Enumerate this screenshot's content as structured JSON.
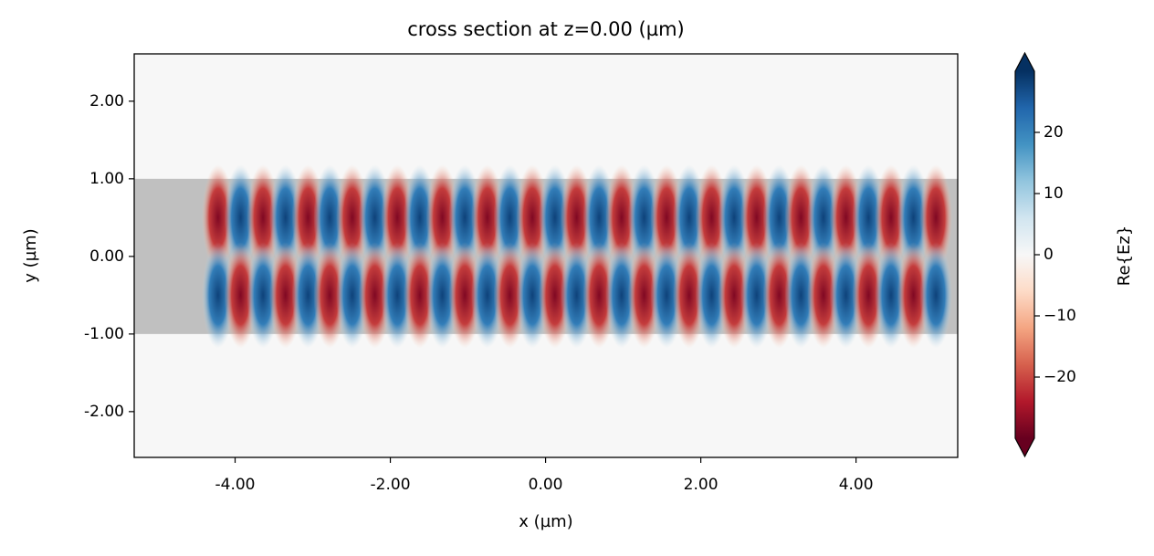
{
  "chart_data": {
    "type": "heatmap",
    "title": "cross section at z=0.00 (µm)",
    "x_label": "x (µm)",
    "y_label": "y (µm)",
    "colorbar_label": "Re{Ez}",
    "colormap": "RdBu",
    "background_color": "#c0c0c0",
    "structure_y": [
      -1,
      1
    ],
    "structure_x": [
      -5.3,
      5.31
    ],
    "x": [
      -4.22,
      -3.93,
      -3.64,
      -3.35,
      -3.06,
      -2.78,
      -2.49,
      -2.2,
      -1.91,
      -1.62,
      -1.33,
      -1.04,
      -0.75,
      -0.46,
      -0.17,
      0.12,
      0.4,
      0.69,
      0.98,
      1.27,
      1.56,
      1.85,
      2.14,
      2.43,
      2.72,
      3.01,
      3.29,
      3.58,
      3.87,
      4.16,
      4.45,
      4.74,
      5.03
    ],
    "y": [
      0.5,
      -0.5
    ],
    "z": [
      [
        -28,
        28,
        -28,
        28,
        -28,
        28,
        -28,
        28,
        -28,
        28,
        -28,
        28,
        -28,
        28,
        -28,
        28,
        -28,
        28,
        -28,
        28,
        -28,
        28,
        -28,
        28,
        -28,
        28,
        -28,
        28,
        -28,
        28,
        -28,
        28,
        -28
      ],
      [
        28,
        -28,
        28,
        -28,
        28,
        -28,
        28,
        -28,
        28,
        -28,
        28,
        -28,
        28,
        -28,
        28,
        -28,
        28,
        -28,
        28,
        -28,
        28,
        -28,
        28,
        -28,
        28,
        -28,
        28,
        -28,
        28,
        -28,
        28,
        -28,
        28
      ]
    ],
    "xlim": [
      -5.3,
      5.31
    ],
    "ylim": [
      -2.59,
      2.61
    ],
    "clim": [
      -30,
      30
    ],
    "xticks": [
      {
        "value": -4,
        "label": "-4.00"
      },
      {
        "value": -2,
        "label": "-2.00"
      },
      {
        "value": 0,
        "label": "0.00"
      },
      {
        "value": 2,
        "label": "2.00"
      },
      {
        "value": 4,
        "label": "4.00"
      }
    ],
    "yticks": [
      {
        "value": -2,
        "label": "-2.00"
      },
      {
        "value": -1,
        "label": "-1.00"
      },
      {
        "value": 0,
        "label": "0.00"
      },
      {
        "value": 1,
        "label": "1.00"
      },
      {
        "value": 2,
        "label": "2.00"
      }
    ],
    "cticks": [
      {
        "value": -20,
        "label": "−20"
      },
      {
        "value": -10,
        "label": "−10"
      },
      0,
      10,
      20
    ]
  }
}
